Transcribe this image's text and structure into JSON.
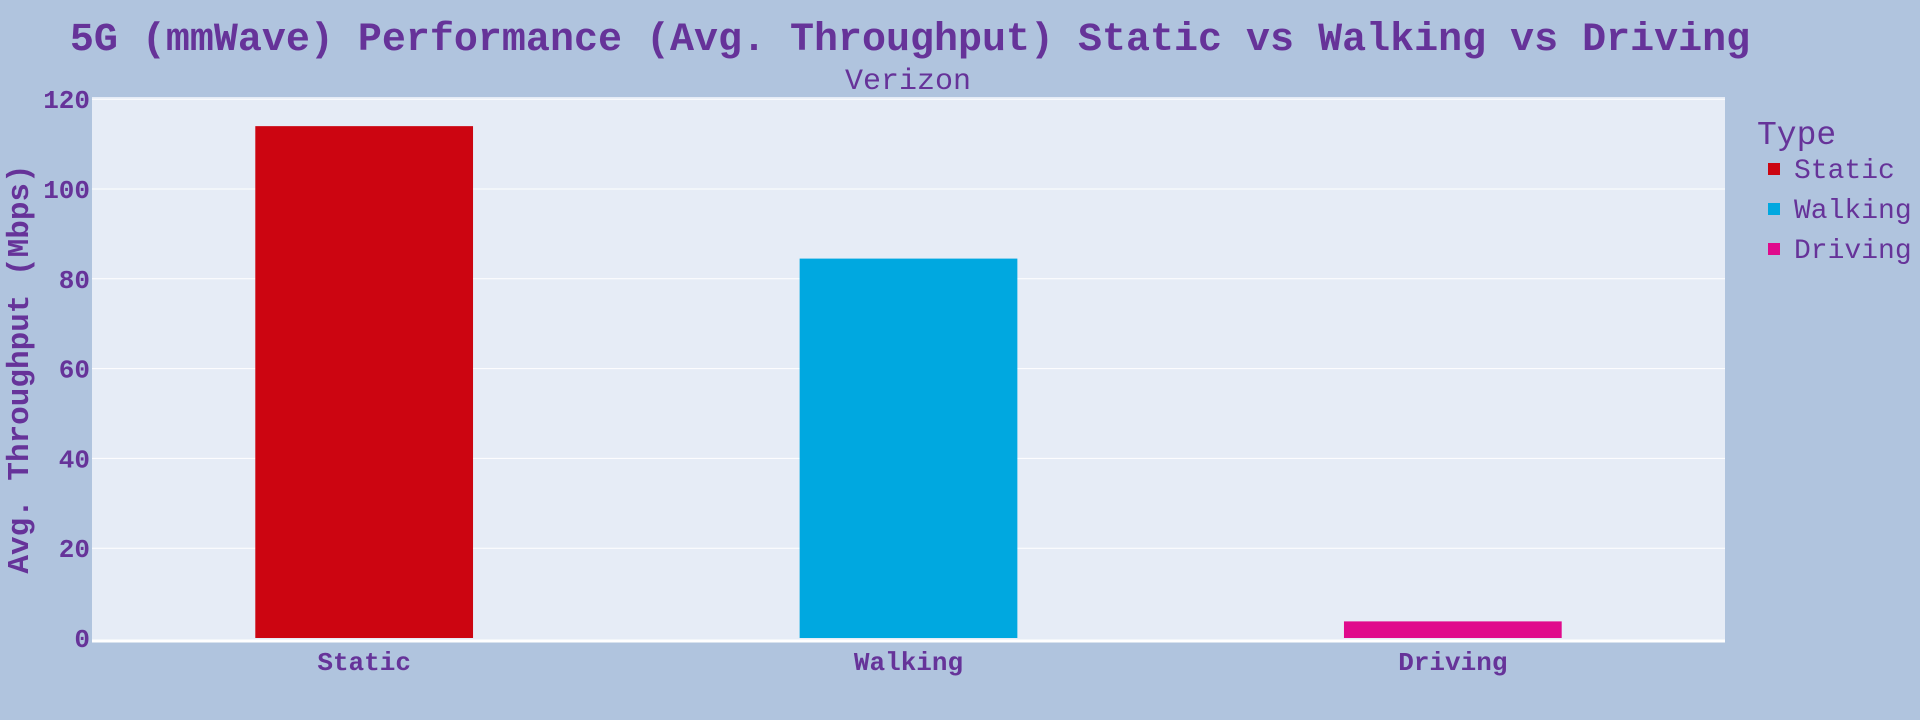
{
  "chart_data": {
    "type": "bar",
    "title": "5G (mmWave) Performance (Avg. Throughput) Static vs Walking vs Driving",
    "subtitle": "Verizon",
    "xlabel": "",
    "ylabel": "Avg. Throughput (Mbps)",
    "categories": [
      "Static",
      "Walking",
      "Driving"
    ],
    "values": [
      114,
      84.5,
      3.7
    ],
    "colors": [
      "#cc0511",
      "#00a8e0",
      "#e00a8c"
    ],
    "ylim": [
      0,
      120
    ],
    "yticks": [
      0,
      20,
      40,
      60,
      80,
      100,
      120
    ],
    "grid": true,
    "legend": {
      "title": "Type",
      "placement": "right",
      "entries": [
        "Static",
        "Walking",
        "Driving"
      ]
    }
  },
  "colors": {
    "page_background": "#b0c4de",
    "plot_background": "#e6ecf6",
    "text": "#663399",
    "grid": "#ffffff"
  }
}
